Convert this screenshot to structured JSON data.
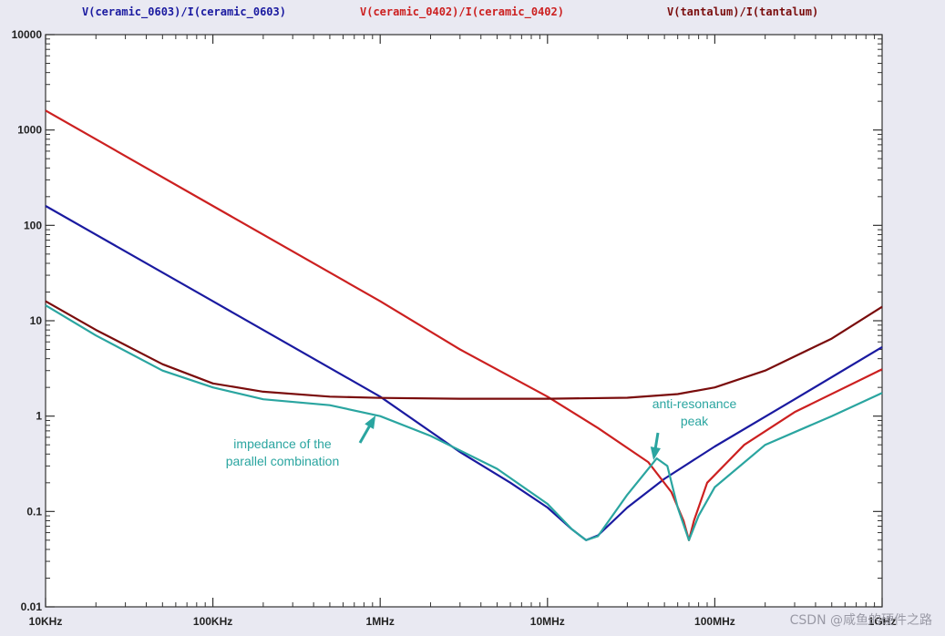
{
  "chart_data": {
    "type": "line",
    "title": "",
    "xlabel": "",
    "ylabel": "",
    "x_scale": "log",
    "y_scale": "log",
    "x_range_hz": [
      10000,
      1000000000
    ],
    "y_range": [
      0.01,
      10000
    ],
    "grid": false,
    "legend_position": "top",
    "x_ticks": [
      {
        "label": "10KHz",
        "value": 10000
      },
      {
        "label": "100KHz",
        "value": 100000
      },
      {
        "label": "1MHz",
        "value": 1000000
      },
      {
        "label": "10MHz",
        "value": 10000000
      },
      {
        "label": "100MHz",
        "value": 100000000
      },
      {
        "label": "1GHz",
        "value": 1000000000
      }
    ],
    "y_ticks": [
      {
        "label": "10000",
        "value": 10000
      },
      {
        "label": "1000",
        "value": 1000
      },
      {
        "label": "100",
        "value": 100
      },
      {
        "label": "10",
        "value": 10
      },
      {
        "label": "1",
        "value": 1
      },
      {
        "label": "0.1",
        "value": 0.1
      },
      {
        "label": "0.01",
        "value": 0.01
      }
    ],
    "series": [
      {
        "name": "V(ceramic_0603)/I(ceramic_0603)",
        "color": "#1a1aa0",
        "points": [
          [
            10000,
            160
          ],
          [
            100000,
            16
          ],
          [
            1000000,
            1.6
          ],
          [
            3000000,
            0.42
          ],
          [
            6000000,
            0.2
          ],
          [
            10000000,
            0.11
          ],
          [
            14000000,
            0.065
          ],
          [
            17000000,
            0.05
          ],
          [
            20000000,
            0.056
          ],
          [
            30000000,
            0.11
          ],
          [
            50000000,
            0.22
          ],
          [
            100000000,
            0.48
          ],
          [
            300000000,
            1.5
          ],
          [
            1000000000,
            5.3
          ]
        ]
      },
      {
        "name": "V(ceramic_0402)/I(ceramic_0402)",
        "color": "#cc2020",
        "points": [
          [
            10000,
            1600
          ],
          [
            100000,
            160
          ],
          [
            1000000,
            16
          ],
          [
            3000000,
            5
          ],
          [
            10000000,
            1.6
          ],
          [
            20000000,
            0.75
          ],
          [
            40000000,
            0.33
          ],
          [
            55000000,
            0.16
          ],
          [
            65000000,
            0.08
          ],
          [
            70000000,
            0.05
          ],
          [
            75000000,
            0.08
          ],
          [
            90000000,
            0.2
          ],
          [
            150000000,
            0.5
          ],
          [
            300000000,
            1.1
          ],
          [
            1000000000,
            3.1
          ]
        ]
      },
      {
        "name": "V(tantalum)/I(tantalum)",
        "color": "#7a0c0c",
        "points": [
          [
            10000,
            16
          ],
          [
            20000,
            8
          ],
          [
            50000,
            3.5
          ],
          [
            100000,
            2.2
          ],
          [
            200000,
            1.8
          ],
          [
            500000,
            1.6
          ],
          [
            1000000,
            1.55
          ],
          [
            3000000,
            1.52
          ],
          [
            10000000,
            1.52
          ],
          [
            30000000,
            1.56
          ],
          [
            60000000,
            1.7
          ],
          [
            100000000,
            2.0
          ],
          [
            200000000,
            3
          ],
          [
            500000000,
            6.5
          ],
          [
            1000000000,
            14
          ]
        ]
      },
      {
        "name": "",
        "color": "#2aa5a0",
        "points": [
          [
            10000,
            14.5
          ],
          [
            20000,
            7
          ],
          [
            50000,
            3
          ],
          [
            100000,
            2
          ],
          [
            200000,
            1.5
          ],
          [
            500000,
            1.3
          ],
          [
            1000000,
            1.0
          ],
          [
            2000000,
            0.62
          ],
          [
            5000000,
            0.28
          ],
          [
            10000000,
            0.12
          ],
          [
            14000000,
            0.065
          ],
          [
            17000000,
            0.05
          ],
          [
            20000000,
            0.055
          ],
          [
            30000000,
            0.15
          ],
          [
            45000000,
            0.36
          ],
          [
            52000000,
            0.3
          ],
          [
            60000000,
            0.11
          ],
          [
            70000000,
            0.05
          ],
          [
            80000000,
            0.09
          ],
          [
            100000000,
            0.18
          ],
          [
            200000000,
            0.5
          ],
          [
            500000000,
            1.0
          ],
          [
            1000000000,
            1.75
          ]
        ]
      }
    ],
    "annotations": [
      {
        "lines": [
          "impedance of the",
          "parallel combination"
        ],
        "color": "#2aa5a0",
        "arrow_to": [
          1000000,
          1.0
        ]
      },
      {
        "lines": [
          "anti-resonance",
          "peak"
        ],
        "color": "#2aa5a0",
        "arrow_to": [
          45000000,
          0.36
        ]
      }
    ]
  },
  "watermark": "CSDN @咸鱼的硬件之路"
}
